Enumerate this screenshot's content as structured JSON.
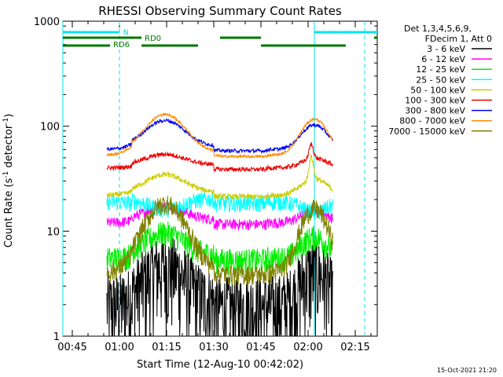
{
  "chart_data": {
    "type": "line",
    "title": "RHESSI Observing Summary Count Rates",
    "xlabel": "Start Time (12-Aug-10 00:42:02)",
    "ylabel_main": "Count Rate (s",
    "ylabel_sup1": "-1",
    "ylabel_mid": " detector",
    "ylabel_sup2": "-1",
    "ylabel_end": ")",
    "y_scale": "log",
    "ylim": [
      1,
      1000
    ],
    "xlim_minutes": [
      42,
      142
    ],
    "x_ticks": [
      {
        "label": "00:45",
        "minute": 45
      },
      {
        "label": "01:00",
        "minute": 60
      },
      {
        "label": "01:15",
        "minute": 75
      },
      {
        "label": "01:30",
        "minute": 90
      },
      {
        "label": "01:45",
        "minute": 105
      },
      {
        "label": "02:00",
        "minute": 120
      },
      {
        "label": "02:15",
        "minute": 135
      }
    ],
    "y_ticks": [
      {
        "label": "1",
        "value": 1
      },
      {
        "label": "10",
        "value": 10
      },
      {
        "label": "100",
        "value": 100
      },
      {
        "label": "1000",
        "value": 1000
      }
    ],
    "legend_header": [
      "Det 1,3,4,5,6,9,",
      "FDecim 1, Att 0"
    ],
    "legend_placement": "right",
    "series": [
      {
        "name": "3 - 6 keV",
        "color": "#000000",
        "base": 2.0,
        "peak": 4.5,
        "noise": 0.9
      },
      {
        "name": "6 - 12 keV",
        "color": "#ff00ff",
        "base": 12.0,
        "peak": 16.0,
        "noise": 0.12
      },
      {
        "name": "12 - 25 keV",
        "color": "#00ee00",
        "base": 5.5,
        "peak": 9.0,
        "noise": 0.28
      },
      {
        "name": "25 - 50 keV",
        "color": "#00ffff",
        "base": 19.0,
        "peak": 15.0,
        "noise": 0.18
      },
      {
        "name": "50 - 100 keV",
        "color": "#cccc00",
        "base": 22.0,
        "peak": 32.0,
        "noise": 0.06
      },
      {
        "name": "100 - 300 keV",
        "color": "#ee0000",
        "base": 40.0,
        "peak": 50.0,
        "noise": 0.05
      },
      {
        "name": "300 - 800 keV",
        "color": "#0000ee",
        "base": 60.0,
        "peak": 105.0,
        "noise": 0.04
      },
      {
        "name": "800 - 7000 keV",
        "color": "#ff8c00",
        "base": 53.0,
        "peak": 120.0,
        "noise": 0.03
      },
      {
        "name": "7000 - 15000 keV",
        "color": "#808000",
        "base": 4.0,
        "peak": 17.0,
        "noise": 0.22
      }
    ],
    "states": {
      "n_label": "N",
      "rd0_label": "RD0",
      "rd6_label": "RD6",
      "n_segments_minutes": [
        [
          42,
          60
        ],
        [
          122,
          142
        ]
      ],
      "rd0_segments_minutes": [
        [
          42,
          67
        ],
        [
          92,
          105
        ],
        [
          141,
          142
        ]
      ],
      "rd6_segments_minutes": [
        [
          42,
          57
        ],
        [
          67,
          85
        ],
        [
          105,
          132
        ]
      ],
      "cyan_lines_minutes": [
        42,
        60,
        122,
        138
      ]
    },
    "data_window_minutes": [
      56,
      128
    ],
    "segment_breaks_minutes": [
      64,
      90,
      107
    ],
    "peak_centers_minutes": [
      74.5,
      122
    ]
  },
  "footer": {
    "timestamp": "15-Oct-2021 21:20"
  }
}
